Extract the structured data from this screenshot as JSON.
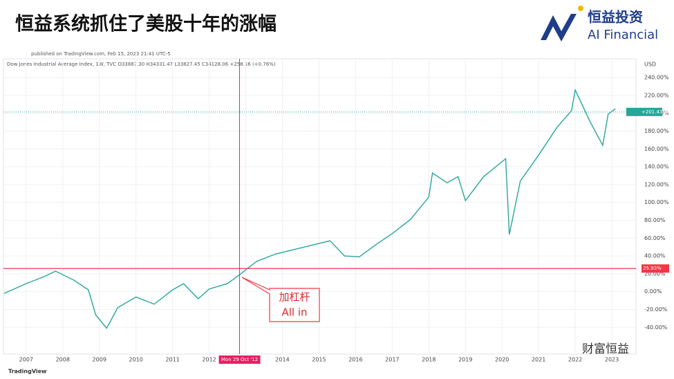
{
  "header": {
    "title": "恒益系统抓住了美股十年的涨幅",
    "logo_cn": "恒益投资",
    "logo_en": "AI Financial"
  },
  "chart_data": {
    "type": "line",
    "published": "published on TradingView.com, Feb 15, 2023 21:41 UTC-5",
    "legend_text": "Dow Jones Industrial Average Index, 1W, TVC  O33887.30  H34331.47  L33827.45  C34128.06  +258.16 (+0.76%)",
    "currency": "USD",
    "x": [
      2006.4,
      2007.0,
      2007.5,
      2007.8,
      2008.3,
      2008.7,
      2008.9,
      2009.2,
      2009.5,
      2010.0,
      2010.5,
      2011.0,
      2011.3,
      2011.7,
      2012.0,
      2012.5,
      2012.83,
      2013.3,
      2013.8,
      2014.3,
      2014.8,
      2015.3,
      2015.7,
      2016.1,
      2016.6,
      2017.0,
      2017.5,
      2018.0,
      2018.1,
      2018.5,
      2018.8,
      2019.0,
      2019.5,
      2020.1,
      2020.2,
      2020.5,
      2021.0,
      2021.5,
      2021.9,
      2022.0,
      2022.4,
      2022.75,
      2022.9,
      2023.1
    ],
    "series": [
      {
        "color": "#26a69a",
        "values": [
          -2,
          9,
          17,
          23,
          13,
          2,
          -26,
          -41,
          -18,
          -6,
          -14,
          2,
          9,
          -8,
          3,
          9,
          19,
          34,
          42,
          47,
          52,
          57,
          40,
          39,
          54,
          65,
          81,
          106,
          133,
          122,
          129,
          102,
          129,
          149,
          64,
          124,
          153,
          184,
          203,
          226,
          191,
          164,
          199,
          205
        ]
      }
    ],
    "xlim": [
      2006.38,
      2023.66
    ],
    "xticks": [
      2007,
      2008,
      2009,
      2010,
      2011,
      2012,
      2013,
      2014,
      2015,
      2016,
      2017,
      2018,
      2019,
      2020,
      2021,
      2022,
      2023
    ],
    "ylim": [
      -70,
      261
    ],
    "yticks": [
      {
        "value": -40,
        "label": "-40.00%"
      },
      {
        "value": -20,
        "label": "-20.00%"
      },
      {
        "value": 0,
        "label": "0.00%"
      },
      {
        "value": 20,
        "label": "20.00%"
      },
      {
        "value": 40,
        "label": "40.00%"
      },
      {
        "value": 60,
        "label": "60.00%"
      },
      {
        "value": 80,
        "label": "80.00%"
      },
      {
        "value": 100,
        "label": "100.00%"
      },
      {
        "value": 120,
        "label": "120.00%"
      },
      {
        "value": 140,
        "label": "140.00%"
      },
      {
        "value": 160,
        "label": "160.00%"
      },
      {
        "value": 180,
        "label": "180.00%"
      },
      {
        "value": 200,
        "label": "200.00%"
      },
      {
        "value": 220,
        "label": "220.00%"
      },
      {
        "value": 240,
        "label": "240.00%"
      }
    ],
    "grid": true,
    "reference_line": {
      "value": 25.93,
      "label": "25.93%",
      "color": "#f23645"
    },
    "crosshair": {
      "x": 2012.83,
      "label": "Mon 29 Oct '12",
      "color": "#e91e63"
    },
    "last_value": {
      "value": 201.43,
      "label": "+201.43%"
    },
    "annotation": {
      "lines": [
        "加杠杆",
        "All in"
      ]
    },
    "watermark": "财富恒益",
    "brand": "TradingView"
  }
}
